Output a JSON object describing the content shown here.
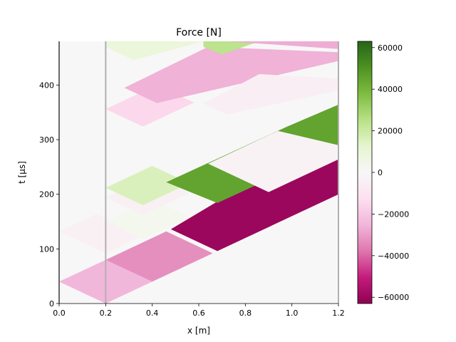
{
  "chart_data": {
    "type": "heatmap",
    "title": "Force [N]",
    "xlabel": "x [m]",
    "ylabel": "t [µs]",
    "xlim": [
      0,
      1.2
    ],
    "ylim": [
      0,
      480
    ],
    "x_ticks": [
      0.0,
      0.2,
      0.4,
      0.6,
      0.8,
      1.0,
      1.2
    ],
    "x_tick_labels": [
      "0.0",
      "0.2",
      "0.4",
      "0.6",
      "0.8",
      "1.0",
      "1.2"
    ],
    "y_ticks": [
      0,
      100,
      200,
      300,
      400
    ],
    "y_tick_labels": [
      "0",
      "100",
      "200",
      "300",
      "400"
    ],
    "vertical_lines_x": [
      0.0,
      0.2,
      1.2
    ],
    "colormap": "PiYG",
    "color_range": [
      -63000,
      63000
    ],
    "colorbar_ticks": [
      -60000,
      -40000,
      -20000,
      0,
      20000,
      40000,
      60000
    ],
    "colorbar_tick_labels": [
      "−60000",
      "−40000",
      "−20000",
      "0",
      "20000",
      "40000",
      "60000"
    ],
    "background_value": 0,
    "regions": [
      {
        "polygon": [
          [
            0.0,
            40
          ],
          [
            0.2,
            0
          ],
          [
            0.4,
            40
          ],
          [
            0.2,
            80
          ]
        ],
        "value": -25000
      },
      {
        "polygon": [
          [
            0.2,
            80
          ],
          [
            0.4,
            40
          ],
          [
            0.66,
            92
          ],
          [
            0.46,
            132
          ]
        ],
        "value": -33000
      },
      {
        "polygon": [
          [
            0.48,
            136
          ],
          [
            0.68,
            96
          ],
          [
            1.2,
            200
          ],
          [
            1.2,
            270
          ],
          [
            1.0,
            268
          ]
        ],
        "value": -60000
      },
      {
        "polygon": [
          [
            0.0,
            132
          ],
          [
            0.2,
            92
          ],
          [
            0.36,
            124
          ],
          [
            0.16,
            164
          ]
        ],
        "value": -4000
      },
      {
        "polygon": [
          [
            0.2,
            150
          ],
          [
            0.36,
            118
          ],
          [
            0.56,
            158
          ],
          [
            0.4,
            190
          ]
        ],
        "value": 3000
      },
      {
        "polygon": [
          [
            0.2,
            194
          ],
          [
            0.36,
            162
          ],
          [
            0.56,
            202
          ],
          [
            0.4,
            234
          ]
        ],
        "value": -4000
      },
      {
        "polygon": [
          [
            0.2,
            212
          ],
          [
            0.36,
            180
          ],
          [
            0.56,
            220
          ],
          [
            0.4,
            252
          ]
        ],
        "value": 16000
      },
      {
        "polygon": [
          [
            0.46,
            222
          ],
          [
            0.68,
            184
          ],
          [
            1.2,
            286
          ],
          [
            1.2,
            364
          ],
          [
            0.98,
            324
          ]
        ],
        "value": 45000
      },
      {
        "polygon": [
          [
            0.64,
            256
          ],
          [
            0.9,
            204
          ],
          [
            1.2,
            264
          ],
          [
            1.2,
            290
          ],
          [
            0.94,
            316
          ]
        ],
        "value": -3000
      },
      {
        "polygon": [
          [
            0.2,
            356
          ],
          [
            0.36,
            324
          ],
          [
            0.58,
            368
          ],
          [
            0.42,
            400
          ]
        ],
        "value": -15000
      },
      {
        "polygon": [
          [
            0.28,
            395
          ],
          [
            0.42,
            367
          ],
          [
            1.2,
            444
          ],
          [
            1.2,
            460
          ],
          [
            0.64,
            470
          ]
        ],
        "value": -26000
      },
      {
        "polygon": [
          [
            0.62,
            366
          ],
          [
            0.72,
            346
          ],
          [
            1.2,
            390
          ],
          [
            1.2,
            412
          ],
          [
            0.86,
            420
          ]
        ],
        "value": -5000
      },
      {
        "polygon": [
          [
            0.2,
            470
          ],
          [
            0.32,
            446
          ],
          [
            0.62,
            480
          ],
          [
            0.2,
            480
          ]
        ],
        "value": 9000
      },
      {
        "polygon": [
          [
            0.62,
            470
          ],
          [
            0.7,
            456
          ],
          [
            0.86,
            480
          ],
          [
            0.62,
            480
          ]
        ],
        "value": 24000
      },
      {
        "polygon": [
          [
            0.72,
            480
          ],
          [
            1.2,
            466
          ],
          [
            1.2,
            480
          ]
        ],
        "value": -27000
      }
    ]
  }
}
